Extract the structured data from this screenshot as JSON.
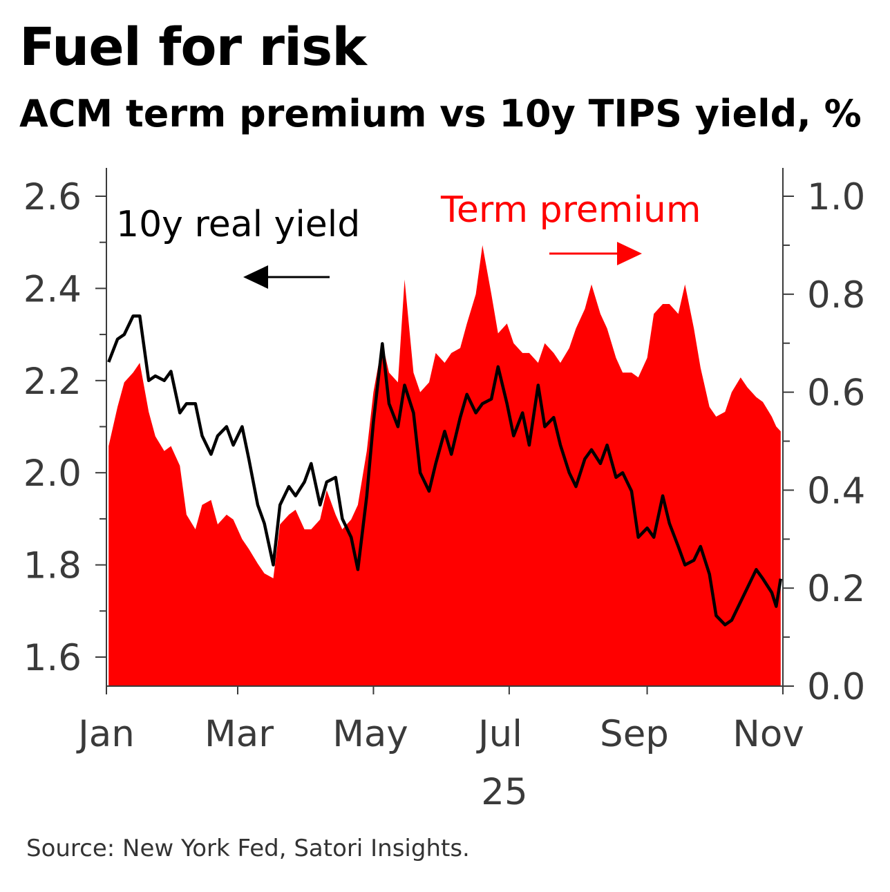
{
  "title": "Fuel for risk",
  "subtitle": "ACM term premium vs 10y TIPS yield, %",
  "source": "Source: New York Fed, Satori Insights.",
  "colors": {
    "term_premium": "#ff0000",
    "real_yield": "#000000",
    "axis": "#3a3a3a"
  },
  "chart_data": {
    "type": "area",
    "title": "Fuel for risk",
    "subtitle": "ACM term premium vs 10y TIPS yield, %",
    "x_tick_labels": [
      "Jan",
      "Mar",
      "May",
      "Jul",
      "Sep",
      "Nov"
    ],
    "x_year_label": "25",
    "x_range": [
      "2025-01-02",
      "2025-10-31"
    ],
    "y_left": {
      "ylim": [
        1.55,
        2.67
      ],
      "tick_labels": [
        "1.6",
        "1.8",
        "2.0",
        "2.2",
        "2.4",
        "2.6"
      ]
    },
    "y_right": {
      "ylim": [
        0.0,
        1.05
      ],
      "tick_labels": [
        "0.0",
        "0.2",
        "0.4",
        "0.6",
        "0.8",
        "1.0"
      ]
    },
    "annotations": {
      "real_yield_label": "10y real yield",
      "term_premium_label": "Term premium",
      "real_yield_arrow": "left",
      "term_premium_arrow": "right"
    },
    "grid": false,
    "series": [
      {
        "name": "10y real yield",
        "axis": "left",
        "style": "line",
        "color": "#000000",
        "points": [
          [
            "2025-01-02",
            2.24
          ],
          [
            "2025-01-06",
            2.29
          ],
          [
            "2025-01-09",
            2.3
          ],
          [
            "2025-01-13",
            2.34
          ],
          [
            "2025-01-16",
            2.34
          ],
          [
            "2025-01-20",
            2.2
          ],
          [
            "2025-01-23",
            2.21
          ],
          [
            "2025-01-27",
            2.2
          ],
          [
            "2025-01-30",
            2.22
          ],
          [
            "2025-02-03",
            2.13
          ],
          [
            "2025-02-06",
            2.15
          ],
          [
            "2025-02-10",
            2.15
          ],
          [
            "2025-02-13",
            2.08
          ],
          [
            "2025-02-17",
            2.04
          ],
          [
            "2025-02-20",
            2.08
          ],
          [
            "2025-02-24",
            2.1
          ],
          [
            "2025-02-27",
            2.06
          ],
          [
            "2025-03-03",
            2.1
          ],
          [
            "2025-03-06",
            2.03
          ],
          [
            "2025-03-10",
            1.93
          ],
          [
            "2025-03-13",
            1.89
          ],
          [
            "2025-03-17",
            1.8
          ],
          [
            "2025-03-20",
            1.93
          ],
          [
            "2025-03-24",
            1.97
          ],
          [
            "2025-03-27",
            1.95
          ],
          [
            "2025-03-31",
            1.98
          ],
          [
            "2025-04-03",
            2.02
          ],
          [
            "2025-04-07",
            1.93
          ],
          [
            "2025-04-10",
            1.98
          ],
          [
            "2025-04-14",
            1.99
          ],
          [
            "2025-04-17",
            1.9
          ],
          [
            "2025-04-21",
            1.86
          ],
          [
            "2025-04-24",
            1.79
          ],
          [
            "2025-04-28",
            1.95
          ],
          [
            "2025-05-01",
            2.11
          ],
          [
            "2025-05-05",
            2.28
          ],
          [
            "2025-05-08",
            2.15
          ],
          [
            "2025-05-12",
            2.1
          ],
          [
            "2025-05-15",
            2.19
          ],
          [
            "2025-05-19",
            2.13
          ],
          [
            "2025-05-22",
            2.0
          ],
          [
            "2025-05-26",
            1.96
          ],
          [
            "2025-05-29",
            2.02
          ],
          [
            "2025-06-02",
            2.09
          ],
          [
            "2025-06-05",
            2.04
          ],
          [
            "2025-06-09",
            2.12
          ],
          [
            "2025-06-12",
            2.17
          ],
          [
            "2025-06-16",
            2.13
          ],
          [
            "2025-06-19",
            2.15
          ],
          [
            "2025-06-23",
            2.16
          ],
          [
            "2025-06-26",
            2.23
          ],
          [
            "2025-06-30",
            2.15
          ],
          [
            "2025-07-03",
            2.08
          ],
          [
            "2025-07-07",
            2.13
          ],
          [
            "2025-07-10",
            2.06
          ],
          [
            "2025-07-14",
            2.19
          ],
          [
            "2025-07-17",
            2.1
          ],
          [
            "2025-07-21",
            2.12
          ],
          [
            "2025-07-24",
            2.06
          ],
          [
            "2025-07-28",
            2.0
          ],
          [
            "2025-07-31",
            1.97
          ],
          [
            "2025-08-04",
            2.03
          ],
          [
            "2025-08-07",
            2.05
          ],
          [
            "2025-08-11",
            2.02
          ],
          [
            "2025-08-14",
            2.06
          ],
          [
            "2025-08-18",
            1.99
          ],
          [
            "2025-08-21",
            2.0
          ],
          [
            "2025-08-25",
            1.96
          ],
          [
            "2025-08-28",
            1.86
          ],
          [
            "2025-09-01",
            1.88
          ],
          [
            "2025-09-04",
            1.86
          ],
          [
            "2025-09-08",
            1.95
          ],
          [
            "2025-09-11",
            1.89
          ],
          [
            "2025-09-15",
            1.84
          ],
          [
            "2025-09-18",
            1.8
          ],
          [
            "2025-09-22",
            1.81
          ],
          [
            "2025-09-25",
            1.84
          ],
          [
            "2025-09-29",
            1.78
          ],
          [
            "2025-10-02",
            1.69
          ],
          [
            "2025-10-06",
            1.67
          ],
          [
            "2025-10-09",
            1.68
          ],
          [
            "2025-10-13",
            1.72
          ],
          [
            "2025-10-16",
            1.75
          ],
          [
            "2025-10-20",
            1.79
          ],
          [
            "2025-10-23",
            1.77
          ],
          [
            "2025-10-27",
            1.74
          ],
          [
            "2025-10-29",
            1.71
          ],
          [
            "2025-10-31",
            1.77
          ]
        ]
      },
      {
        "name": "Term premium",
        "axis": "right",
        "style": "area",
        "color": "#ff0000",
        "points": [
          [
            "2025-01-02",
            0.49
          ],
          [
            "2025-01-06",
            0.57
          ],
          [
            "2025-01-09",
            0.62
          ],
          [
            "2025-01-13",
            0.64
          ],
          [
            "2025-01-16",
            0.66
          ],
          [
            "2025-01-20",
            0.56
          ],
          [
            "2025-01-23",
            0.51
          ],
          [
            "2025-01-27",
            0.48
          ],
          [
            "2025-01-30",
            0.49
          ],
          [
            "2025-02-03",
            0.45
          ],
          [
            "2025-02-06",
            0.35
          ],
          [
            "2025-02-10",
            0.32
          ],
          [
            "2025-02-13",
            0.37
          ],
          [
            "2025-02-17",
            0.38
          ],
          [
            "2025-02-20",
            0.33
          ],
          [
            "2025-02-24",
            0.35
          ],
          [
            "2025-02-27",
            0.34
          ],
          [
            "2025-03-03",
            0.3
          ],
          [
            "2025-03-06",
            0.28
          ],
          [
            "2025-03-10",
            0.25
          ],
          [
            "2025-03-13",
            0.23
          ],
          [
            "2025-03-17",
            0.22
          ],
          [
            "2025-03-20",
            0.33
          ],
          [
            "2025-03-24",
            0.35
          ],
          [
            "2025-03-27",
            0.36
          ],
          [
            "2025-03-31",
            0.32
          ],
          [
            "2025-04-03",
            0.32
          ],
          [
            "2025-04-07",
            0.34
          ],
          [
            "2025-04-10",
            0.4
          ],
          [
            "2025-04-14",
            0.35
          ],
          [
            "2025-04-17",
            0.32
          ],
          [
            "2025-04-21",
            0.34
          ],
          [
            "2025-04-24",
            0.37
          ],
          [
            "2025-04-28",
            0.48
          ],
          [
            "2025-05-01",
            0.6
          ],
          [
            "2025-05-05",
            0.7
          ],
          [
            "2025-05-08",
            0.64
          ],
          [
            "2025-05-12",
            0.62
          ],
          [
            "2025-05-15",
            0.83
          ],
          [
            "2025-05-19",
            0.64
          ],
          [
            "2025-05-22",
            0.6
          ],
          [
            "2025-05-26",
            0.62
          ],
          [
            "2025-05-29",
            0.68
          ],
          [
            "2025-06-02",
            0.66
          ],
          [
            "2025-06-05",
            0.68
          ],
          [
            "2025-06-09",
            0.69
          ],
          [
            "2025-06-12",
            0.74
          ],
          [
            "2025-06-16",
            0.8
          ],
          [
            "2025-06-19",
            0.9
          ],
          [
            "2025-06-23",
            0.8
          ],
          [
            "2025-06-26",
            0.72
          ],
          [
            "2025-06-30",
            0.74
          ],
          [
            "2025-07-03",
            0.7
          ],
          [
            "2025-07-07",
            0.68
          ],
          [
            "2025-07-10",
            0.68
          ],
          [
            "2025-07-14",
            0.66
          ],
          [
            "2025-07-17",
            0.7
          ],
          [
            "2025-07-21",
            0.68
          ],
          [
            "2025-07-24",
            0.66
          ],
          [
            "2025-07-28",
            0.69
          ],
          [
            "2025-07-31",
            0.73
          ],
          [
            "2025-08-04",
            0.77
          ],
          [
            "2025-08-07",
            0.82
          ],
          [
            "2025-08-11",
            0.76
          ],
          [
            "2025-08-14",
            0.73
          ],
          [
            "2025-08-18",
            0.67
          ],
          [
            "2025-08-21",
            0.64
          ],
          [
            "2025-08-25",
            0.64
          ],
          [
            "2025-08-28",
            0.63
          ],
          [
            "2025-09-01",
            0.67
          ],
          [
            "2025-09-04",
            0.76
          ],
          [
            "2025-09-08",
            0.78
          ],
          [
            "2025-09-11",
            0.78
          ],
          [
            "2025-09-15",
            0.76
          ],
          [
            "2025-09-18",
            0.82
          ],
          [
            "2025-09-22",
            0.73
          ],
          [
            "2025-09-25",
            0.65
          ],
          [
            "2025-09-29",
            0.57
          ],
          [
            "2025-10-02",
            0.55
          ],
          [
            "2025-10-06",
            0.56
          ],
          [
            "2025-10-09",
            0.6
          ],
          [
            "2025-10-13",
            0.63
          ],
          [
            "2025-10-16",
            0.61
          ],
          [
            "2025-10-20",
            0.59
          ],
          [
            "2025-10-23",
            0.58
          ],
          [
            "2025-10-27",
            0.55
          ],
          [
            "2025-10-29",
            0.53
          ],
          [
            "2025-10-31",
            0.52
          ]
        ]
      }
    ]
  }
}
